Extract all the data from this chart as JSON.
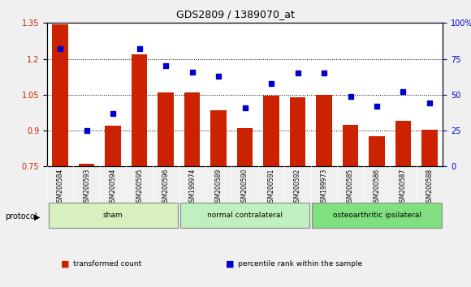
{
  "title": "GDS2809 / 1389070_at",
  "samples": [
    "GSM200584",
    "GSM200593",
    "GSM200594",
    "GSM200595",
    "GSM200596",
    "GSM199974",
    "GSM200589",
    "GSM200590",
    "GSM200591",
    "GSM200592",
    "GSM199973",
    "GSM200585",
    "GSM200586",
    "GSM200587",
    "GSM200588"
  ],
  "transformed_count": [
    1.345,
    0.762,
    0.92,
    1.22,
    1.06,
    1.06,
    0.985,
    0.91,
    1.045,
    1.04,
    1.05,
    0.925,
    0.875,
    0.94,
    0.905
  ],
  "percentile_rank": [
    82,
    25,
    37,
    82,
    70,
    66,
    63,
    41,
    58,
    65,
    65,
    49,
    42,
    52,
    44
  ],
  "groups": [
    {
      "label": "sham",
      "start": 0,
      "end": 5,
      "color": "#d8f0c0"
    },
    {
      "label": "normal contralateral",
      "start": 5,
      "end": 10,
      "color": "#c0f0c0"
    },
    {
      "label": "osteoarthritic ipsilateral",
      "start": 10,
      "end": 15,
      "color": "#80e080"
    }
  ],
  "bar_color": "#cc2200",
  "dot_color": "#0000cc",
  "left_ylim": [
    0.75,
    1.35
  ],
  "right_ylim": [
    0,
    100
  ],
  "left_yticks": [
    0.75,
    0.9,
    1.05,
    1.2,
    1.35
  ],
  "right_yticks": [
    0,
    25,
    50,
    75,
    100
  ],
  "right_yticklabels": [
    "0",
    "25",
    "50",
    "75",
    "100%"
  ],
  "background_color": "#e8e8e8",
  "plot_bg_color": "#ffffff",
  "grid_color": "#000000",
  "protocol_label": "protocol",
  "legend_items": [
    {
      "color": "#cc2200",
      "label": "transformed count"
    },
    {
      "color": "#0000cc",
      "label": "percentile rank within the sample"
    }
  ]
}
